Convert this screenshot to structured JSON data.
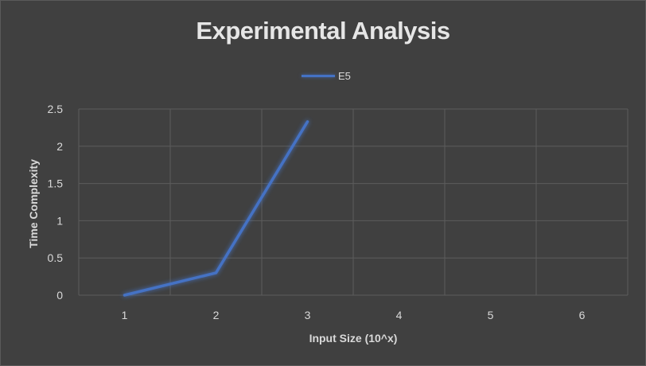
{
  "chart_data": {
    "type": "line",
    "title": "Experimental Analysis",
    "xlabel": "Input Size (10^x)",
    "ylabel": "Time Complexity",
    "categories": [
      "1",
      "2",
      "3",
      "4",
      "5",
      "6"
    ],
    "yticks": [
      "0",
      "0.5",
      "1",
      "1.5",
      "2",
      "2.5"
    ],
    "ylim": [
      0,
      2.5
    ],
    "grid": true,
    "legend_position": "top",
    "series": [
      {
        "name": "E5",
        "color": "#4472c4",
        "values": [
          0.0,
          0.3,
          2.33,
          null,
          null,
          null
        ]
      }
    ]
  }
}
